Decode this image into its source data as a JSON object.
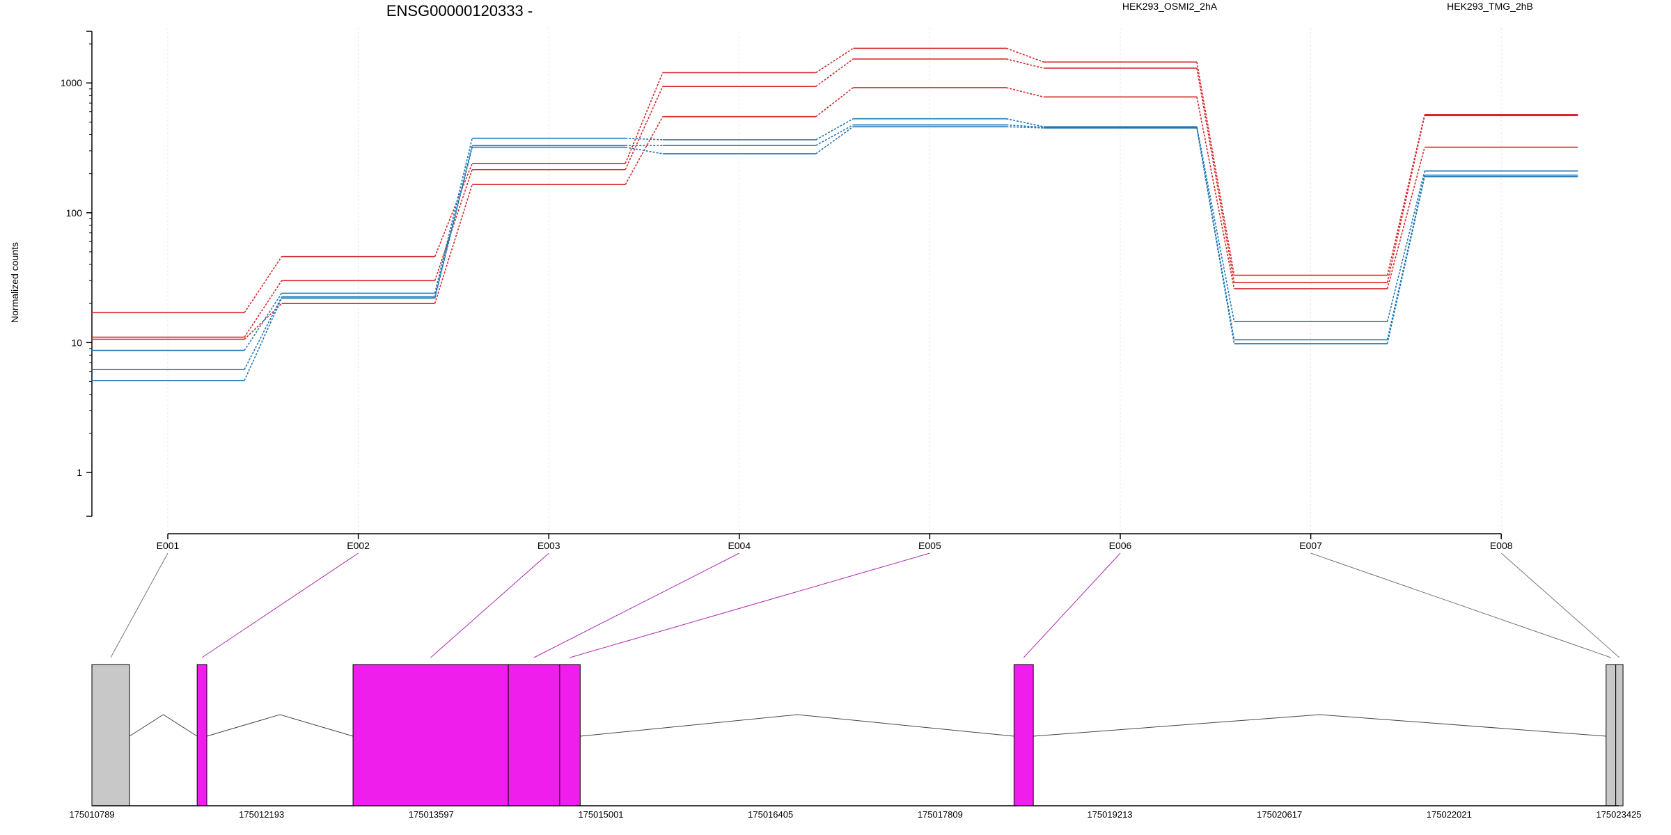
{
  "chart_data": {
    "type": "line",
    "title": "ENSG00000120333 -",
    "xlabel": "",
    "ylabel": "Normalized counts",
    "y_scale": "log",
    "ylim": [
      0.5,
      2500
    ],
    "y_ticks": [
      1,
      10,
      100,
      1000
    ],
    "grid": "vertical-light",
    "legend": "top-right",
    "categories": [
      "E001",
      "E002",
      "E003",
      "E004",
      "E005",
      "E006",
      "E007",
      "E008"
    ],
    "series": [
      {
        "name": "HEK293_OSMI2_2hA",
        "color": "#d62728",
        "values": [
          17,
          46,
          240,
          1200,
          1850,
          1450,
          33,
          570
        ]
      },
      {
        "name": "HEK293_OSMI2_2hA",
        "color": "#d62728",
        "values": [
          11,
          30,
          215,
          940,
          1530,
          1300,
          29,
          560
        ]
      },
      {
        "name": "HEK293_OSMI2_2hA",
        "color": "#d62728",
        "values": [
          10.6,
          20,
          165,
          550,
          920,
          780,
          26,
          320
        ]
      },
      {
        "name": "HEK293_TMG_2hB",
        "color": "#1f77b4",
        "values": [
          8.7,
          24,
          375,
          365,
          530,
          460,
          14.5,
          210
        ]
      },
      {
        "name": "HEK293_TMG_2hB",
        "color": "#1f77b4",
        "values": [
          6.2,
          22.5,
          330,
          330,
          475,
          455,
          10.5,
          195
        ]
      },
      {
        "name": "HEK293_TMG_2hB",
        "color": "#1f77b4",
        "values": [
          5.1,
          22,
          320,
          285,
          460,
          450,
          9.8,
          190
        ]
      }
    ],
    "gene_model": {
      "x_ticks": [
        "175010789",
        "175012193",
        "175013597",
        "175015001",
        "175016405",
        "175017809",
        "175019213",
        "175020617",
        "175022021",
        "175023425"
      ],
      "genomic_range": [
        175010789,
        175023425
      ],
      "exons": [
        {
          "start": 175010789,
          "end": 175011100,
          "color": "#c8c8c8",
          "bin": [
            "E001"
          ]
        },
        {
          "start": 175011660,
          "end": 175011740,
          "color": "#f01eec",
          "bin": [
            "E002"
          ]
        },
        {
          "start": 175012950,
          "end": 175014235,
          "color": "#f01eec",
          "bin": [
            "E003"
          ]
        },
        {
          "start": 175014235,
          "end": 175014660,
          "color": "#f01eec",
          "bin": [
            "E004"
          ]
        },
        {
          "start": 175014660,
          "end": 175014830,
          "color": "#f01eec",
          "bin": [
            "E005"
          ]
        },
        {
          "start": 175018420,
          "end": 175018580,
          "color": "#f01eec",
          "bin": [
            "E006"
          ]
        },
        {
          "start": 175023320,
          "end": 175023400,
          "color": "#c8c8c8",
          "bin": [
            "E007"
          ]
        },
        {
          "start": 175023400,
          "end": 175023460,
          "color": "#c8c8c8",
          "bin": [
            "E008"
          ]
        }
      ],
      "introns": [
        [
          175011100,
          175011660
        ],
        [
          175011740,
          175012950
        ],
        [
          175014830,
          175018420
        ],
        [
          175018580,
          175023320
        ]
      ]
    }
  }
}
